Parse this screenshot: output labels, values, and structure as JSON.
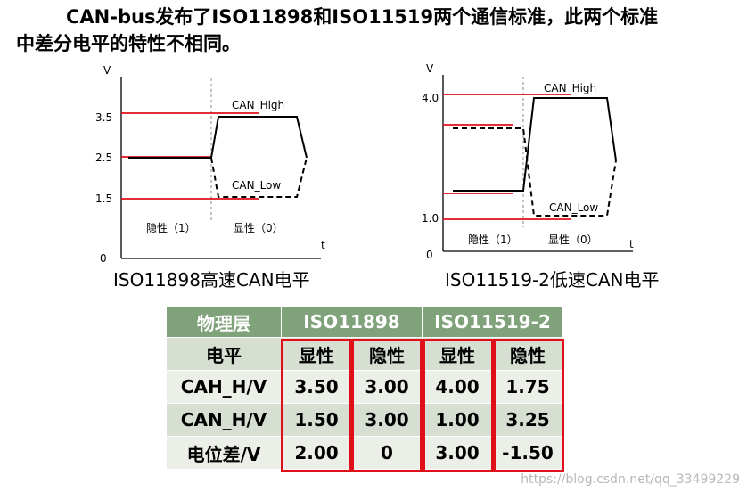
{
  "heading": {
    "line1": "CAN-bus发布了ISO11898和ISO11519两个通信标准，此两个标准",
    "line2": "中差分电平的特性不相同。"
  },
  "diagram_left": {
    "caption": "ISO11898高速CAN电平",
    "y_axis_label": "V",
    "x_axis_label": "t",
    "ticks": [
      "3.5",
      "2.5",
      "1.5",
      "0"
    ],
    "high_label": "CAN_High",
    "low_label": "CAN_Low",
    "recessive_label": "隐性（1）",
    "dominant_label": "显性（0）"
  },
  "diagram_right": {
    "caption": "ISO11519-2低速CAN电平",
    "y_axis_label": "V",
    "x_axis_label": "t",
    "ticks": [
      "4.0",
      "1.0",
      "0"
    ],
    "high_label": "CAN_High",
    "low_label": "CAN_Low",
    "recessive_label": "隐性（1）",
    "dominant_label": "显性（0）"
  },
  "table": {
    "headers": [
      "物理层",
      "ISO11898",
      "ISO11519-2"
    ],
    "rows": [
      [
        "电平",
        "显性",
        "隐性",
        "显性",
        "隐性"
      ],
      [
        "CAH_H/V",
        "3.50",
        "3.00",
        "4.00",
        "1.75"
      ],
      [
        "CAN_H/V",
        "1.50",
        "3.00",
        "1.00",
        "3.25"
      ],
      [
        "电位差/V",
        "2.00",
        "0",
        "3.00",
        "-1.50"
      ]
    ]
  },
  "colors": {
    "red": "#e0101a",
    "header_green": "#7fa27a",
    "row_light": "#ebefe8",
    "row_dark": "#d7dfd3"
  },
  "watermark": "https://blog.csdn.net/qq_33499229"
}
